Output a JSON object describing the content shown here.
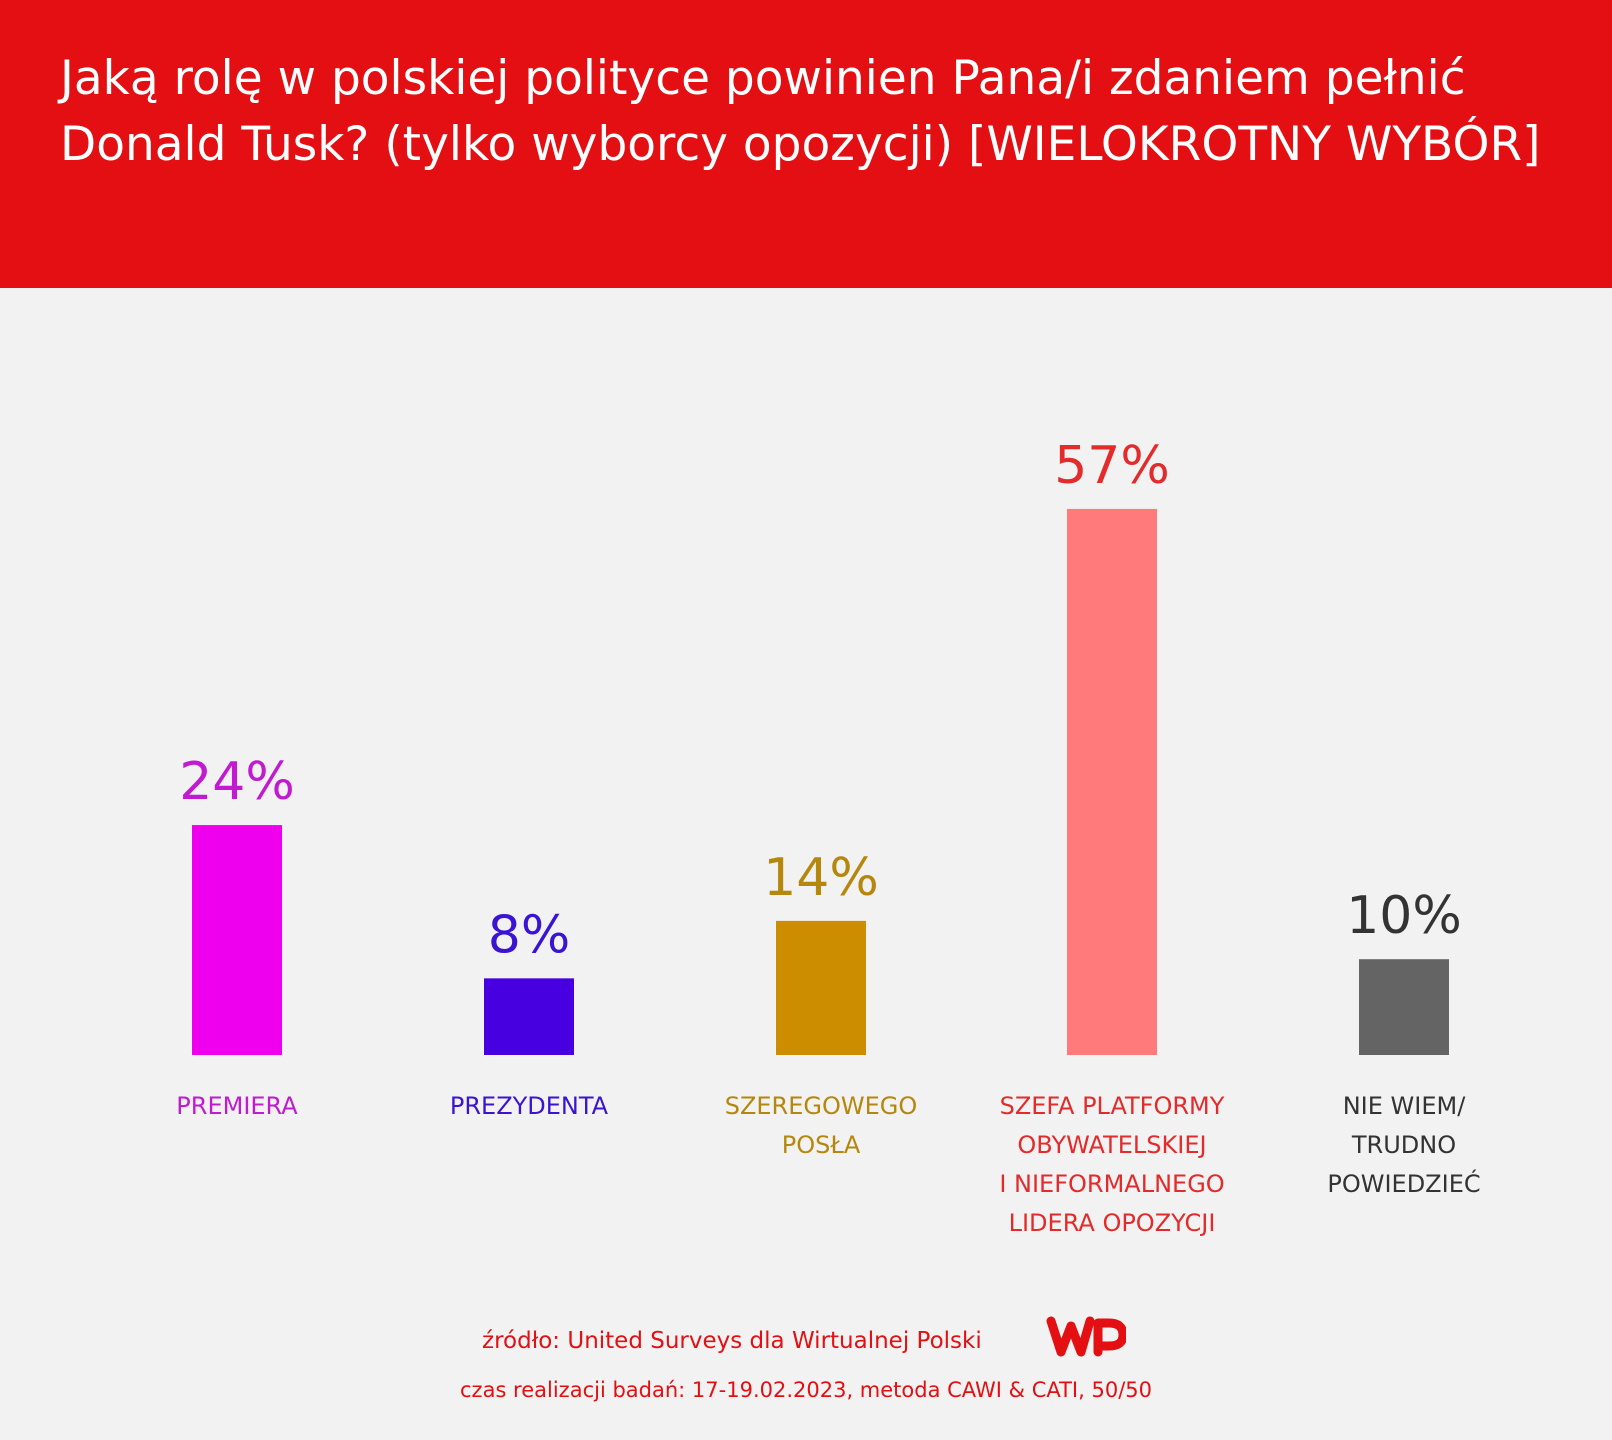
{
  "header": {
    "title": "Jaką rolę w polskiej polityce powinien Pana/i zdaniem pełnić Donald Tusk? (tylko wyborcy opozycji) [WIELOKROTNY WYBÓR]"
  },
  "chart_data": {
    "type": "bar",
    "title": "Jaką rolę w polskiej polityce powinien Pana/i zdaniem pełnić Donald Tusk? (tylko wyborcy opozycji) [WIELOKROTNY WYBÓR]",
    "categories": [
      [
        "PREMIERA"
      ],
      [
        "PREZYDENTA"
      ],
      [
        "SZEREGOWEGO",
        "POSŁA"
      ],
      [
        "SZEFA PLATFORMY",
        "OBYWATELSKIEJ",
        "I NIEFORMALNEGO",
        "LIDERA OPOZYCJI"
      ],
      [
        "NIE WIEM/",
        "TRUDNO",
        "POWIEDZIEĆ"
      ]
    ],
    "values": [
      24,
      8,
      14,
      57,
      10
    ],
    "value_labels": [
      "24%",
      "8%",
      "14%",
      "57%",
      "10%"
    ],
    "bar_colors": [
      "#ee00ee",
      "#4700e0",
      "#cc8e00",
      "#ff7b7b",
      "#646464"
    ],
    "label_colors": [
      "#c11ad1",
      "#3a14d1",
      "#b5870c",
      "#e32b2b",
      "#333333"
    ],
    "unit": "%",
    "grid": false,
    "legend": "none",
    "xlabel": "",
    "ylabel": ""
  },
  "footer": {
    "source": "źródło: United Surveys dla Wirtualnej Polski",
    "method": "czas realizacji badań: 17-19.02.2023, metoda CAWI & CATI, 50/50",
    "logo_text": "WP"
  },
  "colors": {
    "brand": "#e30f12",
    "background": "#f2f2f2"
  }
}
